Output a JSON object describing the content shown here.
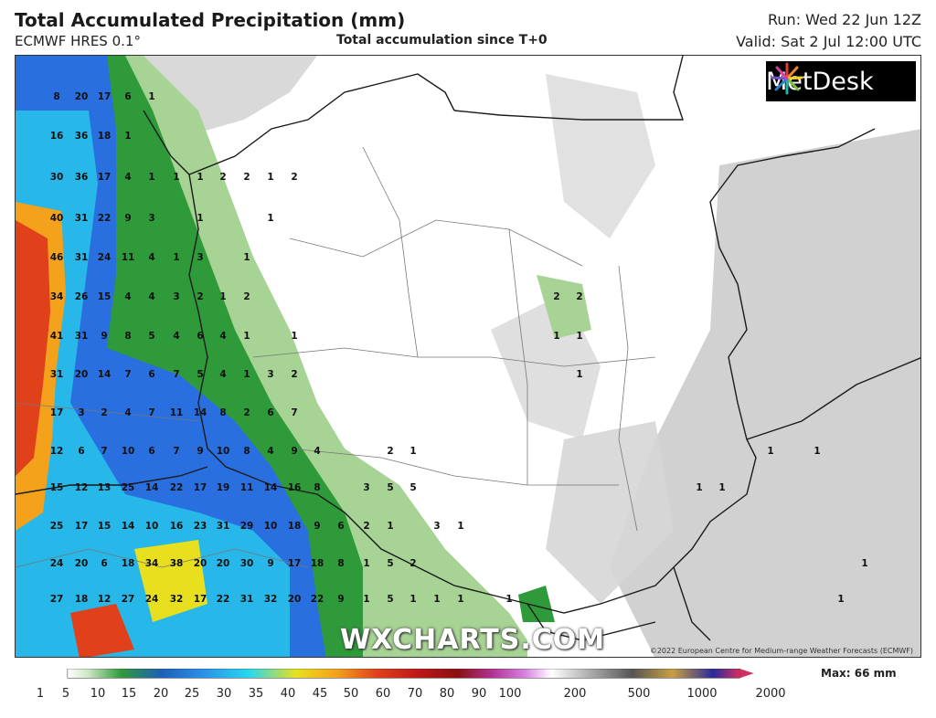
{
  "header": {
    "title": "Total Accumulated Precipitation (mm)",
    "model": "ECMWF HRES 0.1°",
    "subtitle": "Total accumulation since T+0",
    "run": "Run: Wed 22 Jun 12Z",
    "valid": "Valid: Sat 2 Jul 12:00 UTC"
  },
  "logo": {
    "text": "MetDesk"
  },
  "watermark": "WXCHARTS.COM",
  "copyright": "©2022 European Centre for Medium-range Weather Forecasts (ECMWF)",
  "legend": {
    "max_label": "Max: 66 mm",
    "ticks": [
      "1",
      "5",
      "10",
      "15",
      "20",
      "25",
      "30",
      "35",
      "40",
      "45",
      "50",
      "60",
      "70",
      "80",
      "90",
      "100",
      "200",
      "500",
      "1000",
      "2000"
    ]
  },
  "precip_labels": [
    "8",
    "20",
    "17",
    "6",
    "1",
    "16",
    "36",
    "18",
    "1",
    "30",
    "36",
    "17",
    "4",
    "1",
    "1",
    "1",
    "2",
    "2",
    "1",
    "2",
    "40",
    "31",
    "22",
    "9",
    "3",
    "1",
    "1",
    "46",
    "31",
    "24",
    "11",
    "4",
    "1",
    "3",
    "1",
    "34",
    "26",
    "15",
    "4",
    "4",
    "3",
    "2",
    "1",
    "2",
    "2",
    "2",
    "41",
    "31",
    "9",
    "8",
    "5",
    "4",
    "6",
    "4",
    "1",
    "1",
    "1",
    "1",
    "31",
    "20",
    "14",
    "7",
    "6",
    "7",
    "5",
    "4",
    "1",
    "3",
    "2",
    "1",
    "17",
    "3",
    "2",
    "4",
    "7",
    "11",
    "14",
    "8",
    "2",
    "6",
    "7",
    "12",
    "6",
    "7",
    "10",
    "6",
    "7",
    "9",
    "10",
    "8",
    "4",
    "9",
    "4",
    "2",
    "1",
    "1",
    "1",
    "15",
    "12",
    "13",
    "25",
    "14",
    "22",
    "17",
    "19",
    "11",
    "14",
    "16",
    "8",
    "3",
    "5",
    "5",
    "1",
    "1",
    "25",
    "17",
    "15",
    "14",
    "10",
    "16",
    "23",
    "31",
    "29",
    "10",
    "18",
    "9",
    "6",
    "2",
    "1",
    "3",
    "1",
    "24",
    "20",
    "6",
    "18",
    "34",
    "38",
    "20",
    "20",
    "30",
    "9",
    "17",
    "18",
    "8",
    "1",
    "5",
    "2",
    "1",
    "27",
    "18",
    "12",
    "27",
    "24",
    "32",
    "17",
    "22",
    "31",
    "32",
    "20",
    "22",
    "9",
    "1",
    "5",
    "1",
    "1",
    "1",
    "1",
    "1"
  ]
}
